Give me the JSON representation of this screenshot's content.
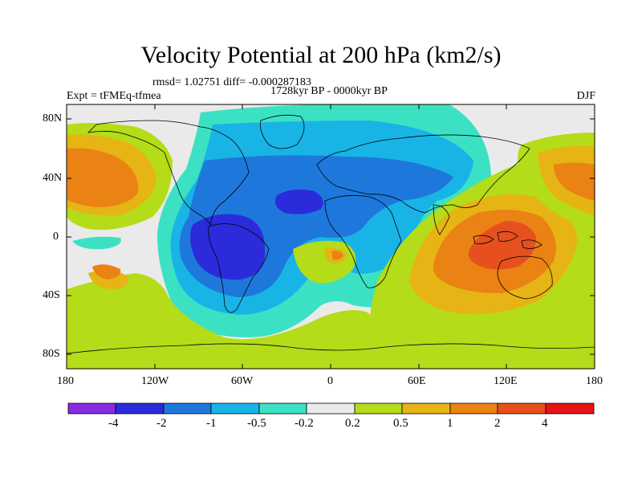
{
  "header": {
    "title": "Velocity Potential at 200 hPa (km2/s)",
    "stats": "rmsd= 1.02751 diff= -0.000287183",
    "subtitle": "1728kyr BP - 0000kyr BP",
    "left_label": "Expt = tFMEq-tfmea",
    "right_label": "DJF"
  },
  "axes": {
    "lat_labels": [
      "80N",
      "40N",
      "0",
      "40S",
      "80S"
    ],
    "lon_labels": [
      "180",
      "120W",
      "60W",
      "0",
      "60E",
      "120E",
      "180"
    ]
  },
  "colorbar": {
    "labels": [
      "-4",
      "-2",
      "-1",
      "-0.5",
      "-0.2",
      "0.2",
      "0.5",
      "1",
      "2",
      "4"
    ],
    "colors": [
      "#8A2BE2",
      "#2B2BDB",
      "#1E78DC",
      "#19B4E6",
      "#3CE1C3",
      "#EAEAEA",
      "#B4DC19",
      "#E6B414",
      "#EB8214",
      "#E6501E",
      "#E61414"
    ]
  },
  "map": {
    "projection": "cylindrical-equidistant",
    "lon_range": [
      -180,
      180
    ],
    "lat_range": [
      -90,
      90
    ]
  }
}
